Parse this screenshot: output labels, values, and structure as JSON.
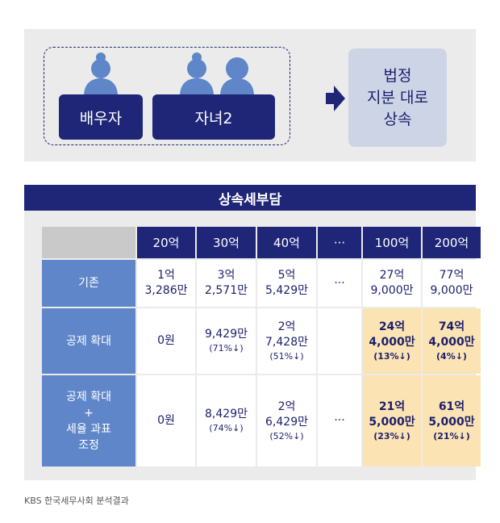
{
  "diagram": {
    "heirs": [
      "배우자",
      "자녀2"
    ],
    "result_lines": [
      "법정",
      "지분 대로",
      "상속"
    ]
  },
  "table": {
    "title": "상속세부담",
    "columns": [
      "20억",
      "30억",
      "40억",
      "···",
      "100억",
      "200억"
    ],
    "rows": [
      {
        "label_lines": [
          "기존"
        ],
        "cells": [
          {
            "lines": [
              "1억",
              "3,286만"
            ],
            "note": ""
          },
          {
            "lines": [
              "3억",
              "2,571만"
            ],
            "note": ""
          },
          {
            "lines": [
              "5억",
              "5,429만"
            ],
            "note": ""
          },
          {
            "lines": [
              "···"
            ],
            "note": ""
          },
          {
            "lines": [
              "27억",
              "9,000만"
            ],
            "note": ""
          },
          {
            "lines": [
              "77억",
              "9,000만"
            ],
            "note": ""
          }
        ]
      },
      {
        "label_lines": [
          "공제 확대"
        ],
        "cells": [
          {
            "lines": [
              "0원"
            ],
            "note": ""
          },
          {
            "lines": [
              "9,429만"
            ],
            "note": "(71%↓)"
          },
          {
            "lines": [
              "2억",
              "7,428만"
            ],
            "note": "(51%↓)"
          },
          {
            "lines": [
              ""
            ],
            "note": ""
          },
          {
            "lines": [
              "24억",
              "4,000만"
            ],
            "note": "(13%↓)"
          },
          {
            "lines": [
              "74억",
              "4,000만"
            ],
            "note": "(4%↓)"
          }
        ]
      },
      {
        "label_lines": [
          "공제 확대",
          "+",
          "세율 과표",
          "조정"
        ],
        "cells": [
          {
            "lines": [
              "0원"
            ],
            "note": ""
          },
          {
            "lines": [
              "8,429만"
            ],
            "note": "(74%↓)"
          },
          {
            "lines": [
              "2억",
              "6,429만"
            ],
            "note": "(52%↓)"
          },
          {
            "lines": [
              "···"
            ],
            "note": ""
          },
          {
            "lines": [
              "21억",
              "5,000만"
            ],
            "note": "(23%↓)"
          },
          {
            "lines": [
              "61억",
              "5,000만"
            ],
            "note": "(21%↓)"
          }
        ]
      }
    ]
  },
  "source": "KBS 한국세무사회 분석결과"
}
